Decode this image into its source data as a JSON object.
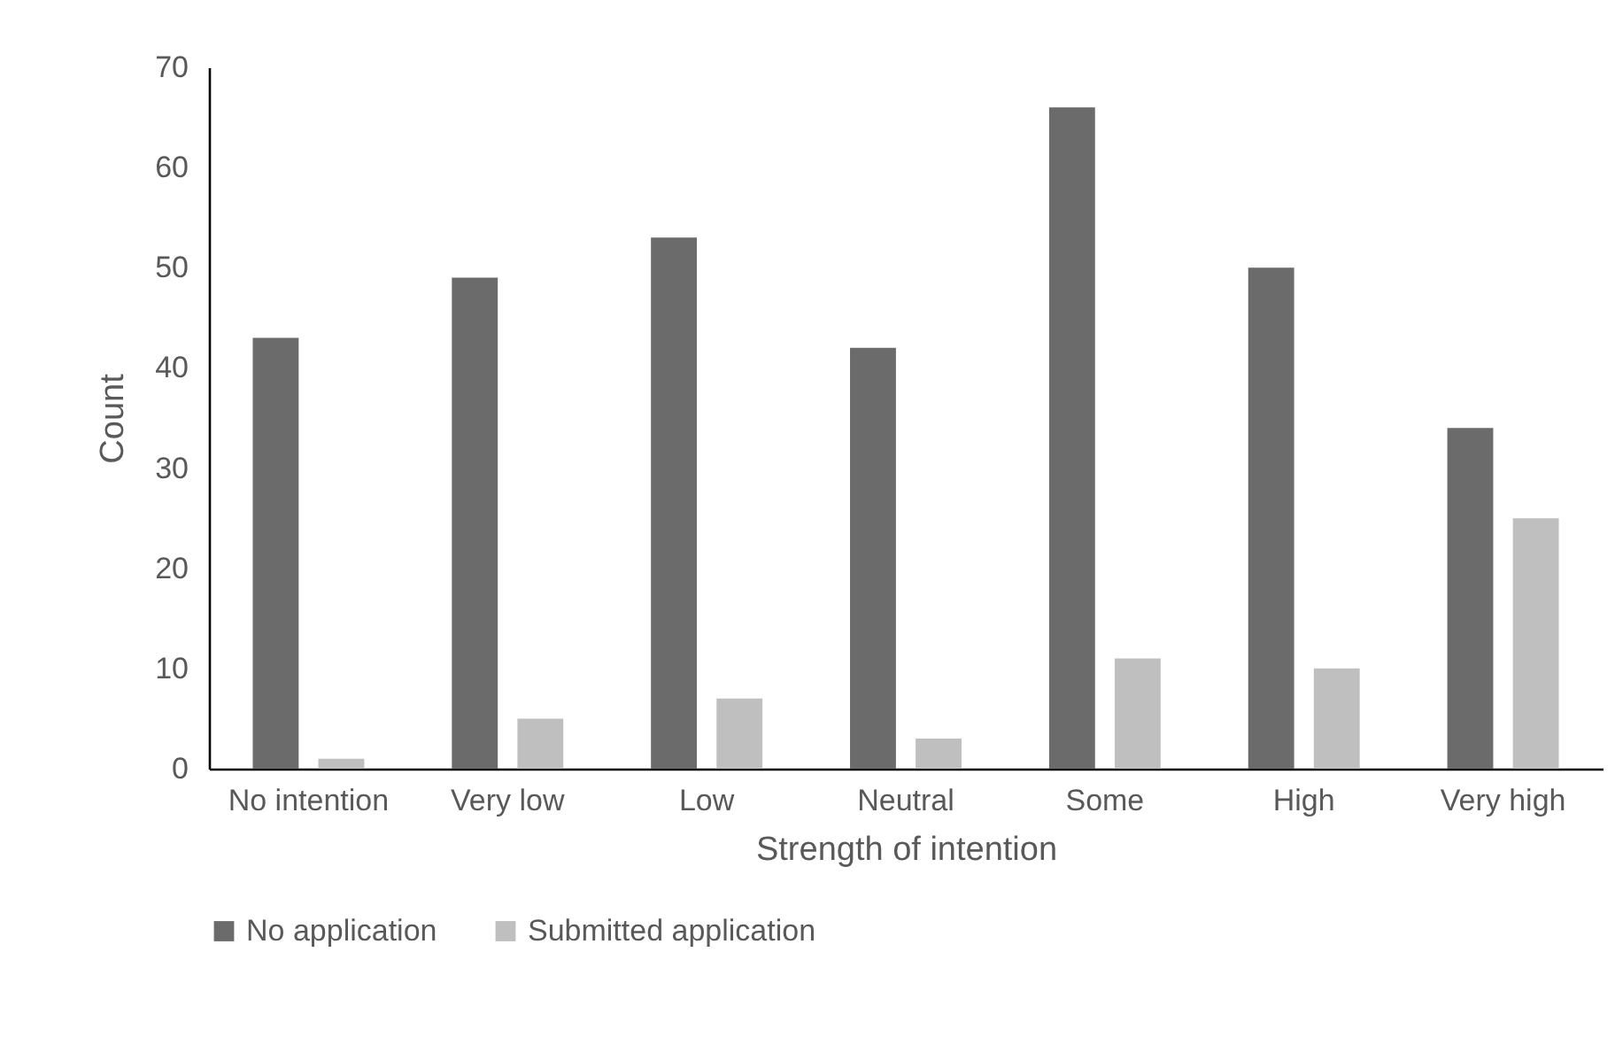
{
  "chart_data": {
    "type": "bar",
    "xlabel": "Strength of intention",
    "ylabel": "Count",
    "categories": [
      "No intention",
      "Very low",
      "Low",
      "Neutral",
      "Some",
      "High",
      "Very high"
    ],
    "series": [
      {
        "name": "No application",
        "color": "#6b6b6b",
        "values": [
          43,
          49,
          53,
          42,
          66,
          50,
          34
        ]
      },
      {
        "name": "Submitted application",
        "color": "#bfbfbf",
        "values": [
          1,
          5,
          7,
          3,
          11,
          10,
          25
        ]
      }
    ],
    "ylim": [
      0,
      70
    ],
    "yticks": [
      0,
      10,
      20,
      30,
      40,
      50,
      60,
      70
    ],
    "grid": false,
    "legend": "bottom"
  }
}
